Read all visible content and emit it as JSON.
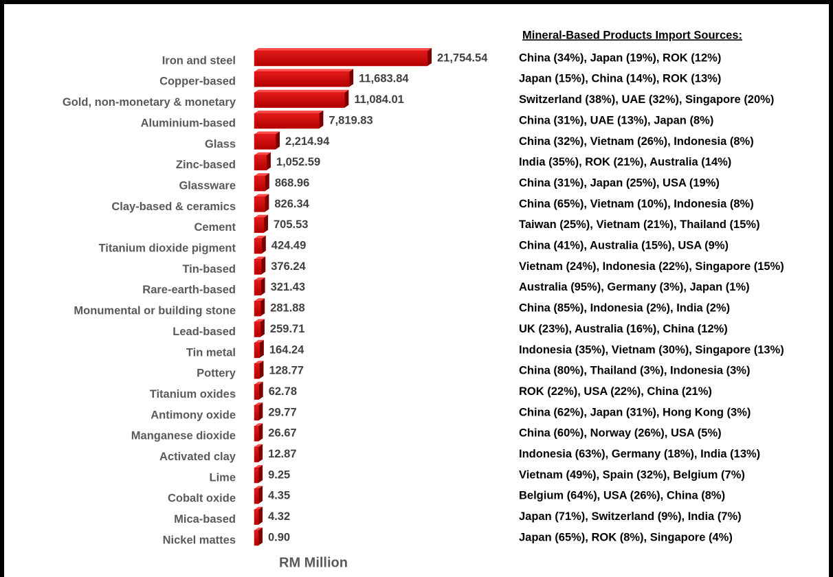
{
  "chart_data": {
    "type": "bar",
    "orientation": "horizontal",
    "title": "Mineral-Based Products Import Sources:",
    "xlabel": "RM Million",
    "color": "#d40000",
    "categories": [
      "Iron and steel",
      "Copper-based",
      "Gold, non-monetary & monetary",
      "Aluminium-based",
      "Glass",
      "Zinc-based",
      "Glassware",
      "Clay-based & ceramics",
      "Cement",
      "Titanium dioxide pigment",
      "Tin-based",
      "Rare-earth-based",
      "Monumental or building stone",
      "Lead-based",
      "Tin metal",
      "Pottery",
      "Titanium oxides",
      "Antimony oxide",
      "Manganese dioxide",
      "Activated clay",
      "Lime",
      "Cobalt oxide",
      "Mica-based",
      "Nickel mattes"
    ],
    "values": [
      21754.54,
      11683.84,
      11084.01,
      7819.83,
      2214.94,
      1052.59,
      868.96,
      826.34,
      705.53,
      424.49,
      376.24,
      321.43,
      281.88,
      259.71,
      164.24,
      128.77,
      62.78,
      29.77,
      26.67,
      12.87,
      9.25,
      4.35,
      4.32,
      0.9
    ],
    "value_labels": [
      "21,754.54",
      "11,683.84",
      "11,084.01",
      "7,819.83",
      "2,214.94",
      "1,052.59",
      "868.96",
      "826.34",
      "705.53",
      "424.49",
      "376.24",
      "321.43",
      "281.88",
      "259.71",
      "164.24",
      "128.77",
      "62.78",
      "29.77",
      "26.67",
      "12.87",
      "9.25",
      "4.35",
      "4.32",
      "0.90"
    ],
    "annotations": [
      "China (34%), Japan (19%), ROK (12%)",
      "Japan (15%), China (14%), ROK (13%)",
      "Switzerland (38%), UAE (32%), Singapore (20%)",
      "China (31%), UAE (13%), Japan (8%)",
      "China (32%), Vietnam (26%), Indonesia (8%)",
      "India (35%), ROK (21%), Australia (14%)",
      "China (31%), Japan (25%), USA (19%)",
      "China (65%), Vietnam (10%), Indonesia (8%)",
      "Taiwan (25%), Vietnam (21%), Thailand (15%)",
      "China (41%), Australia (15%), USA (9%)",
      "Vietnam (24%), Indonesia (22%), Singapore (15%)",
      "Australia (95%), Germany (3%), Japan (1%)",
      "China (85%), Indonesia (2%), India (2%)",
      "UK (23%), Australia (16%), China (12%)",
      "Indonesia (35%), Vietnam (30%), Singapore (13%)",
      "China (80%), Thailand (3%), Indonesia (3%)",
      "ROK (22%), USA (22%), China (21%)",
      "China (62%), Japan (31%), Hong Kong (3%)",
      "China (60%), Norway (26%), USA (5%)",
      "Indonesia (63%), Germany (18%), India (13%)",
      "Vietnam (49%), Spain (32%), Belgium (7%)",
      "Belgium (64%), USA (26%), China (8%)",
      "Japan (71%), Switzerland (9%), India (7%)",
      "Japan (65%), ROK (8%), Singapore (4%)"
    ]
  }
}
